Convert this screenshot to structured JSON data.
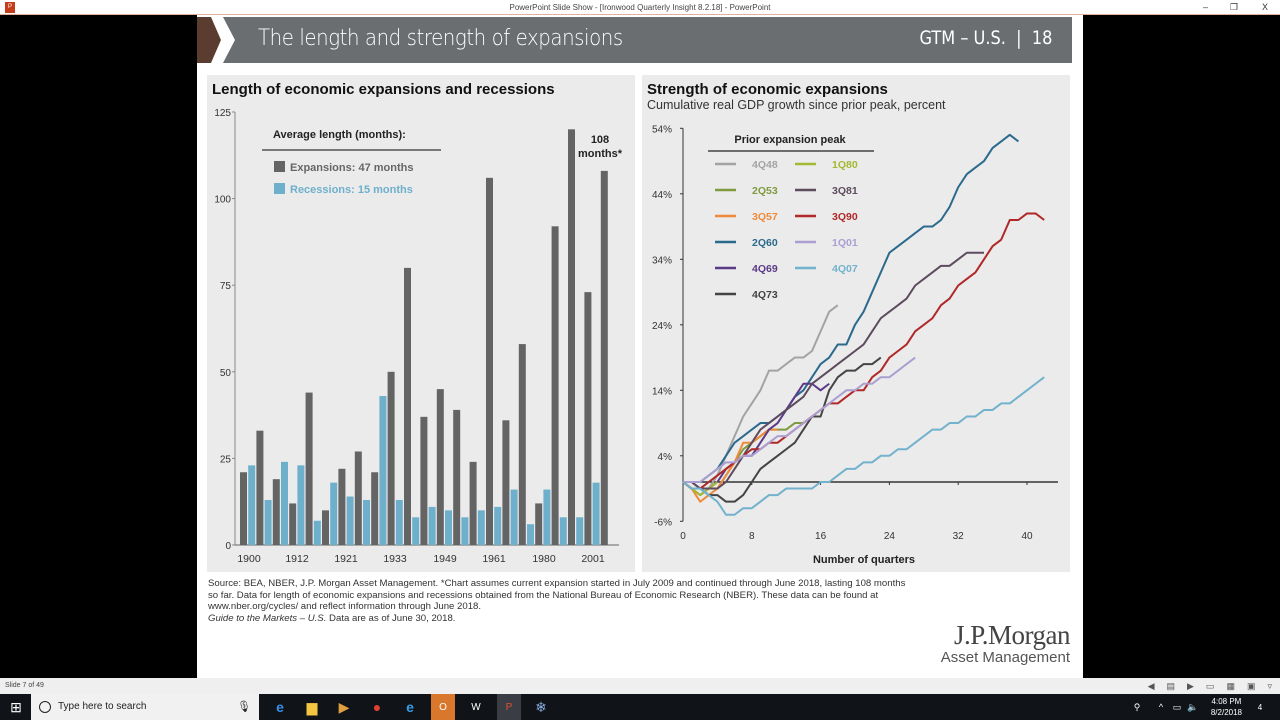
{
  "window": {
    "title": "PowerPoint Slide Show - [Ironwood Quarterly Insight 8.2.18] - PowerPoint",
    "minimize": "–",
    "restore": "❐",
    "close": "X"
  },
  "slide": {
    "title": "The length and strength of expansions",
    "section": "GTM – U.S.",
    "separator": "|",
    "page": "18",
    "accent": "#5a3d30",
    "header_color": "#6b6e71"
  },
  "left_chart": {
    "panel_title": "Length of economic expansions and recessions",
    "chart_data": {
      "type": "bar",
      "legend_title": "Average length (months):",
      "series": [
        {
          "name": "Expansions: 47 months",
          "color": "#646464",
          "values": [
            21,
            33,
            19,
            12,
            44,
            10,
            22,
            27,
            21,
            50,
            80,
            37,
            45,
            39,
            24,
            106,
            36,
            58,
            12,
            92,
            120,
            73,
            108
          ]
        },
        {
          "name": "Recessions: 15 months",
          "color": "#6eb0cc",
          "values": [
            23,
            13,
            24,
            23,
            7,
            18,
            14,
            13,
            43,
            13,
            8,
            11,
            10,
            8,
            10,
            11,
            16,
            6,
            16,
            8,
            8,
            18
          ]
        }
      ],
      "x_tick_labels": [
        "1900",
        "1912",
        "1921",
        "1933",
        "1949",
        "1961",
        "1980",
        "2001"
      ],
      "y_ticks": [
        0,
        25,
        50,
        75,
        100,
        125
      ],
      "ylim": [
        0,
        125
      ],
      "annotation": "108 months*"
    }
  },
  "right_chart": {
    "panel_title": "Strength of economic expansions",
    "subtitle": "Cumulative real GDP growth since prior peak, percent",
    "chart_data": {
      "type": "line",
      "legend_title": "Prior expansion peak",
      "xlabel": "Number of quarters",
      "xlim": [
        0,
        44
      ],
      "ylim": [
        -6,
        54
      ],
      "x_ticks": [
        0,
        8,
        16,
        24,
        32,
        40
      ],
      "y_ticks": [
        -6,
        4,
        14,
        24,
        34,
        44,
        54
      ],
      "y_tick_labels": [
        "-6%",
        "4%",
        "14%",
        "24%",
        "34%",
        "44%",
        "54%"
      ],
      "series": [
        {
          "name": "4Q48",
          "color": "#a3a3a3",
          "values": [
            0,
            -1,
            -2,
            -1,
            1,
            4,
            7,
            10,
            12,
            14,
            17,
            17,
            18,
            19,
            19,
            20,
            23,
            26,
            27
          ]
        },
        {
          "name": "2Q53",
          "color": "#7f9a3f",
          "values": [
            0,
            -1,
            -2,
            -1,
            -1,
            1,
            3,
            5,
            6,
            7,
            8,
            8,
            8,
            9,
            9,
            10,
            10
          ]
        },
        {
          "name": "3Q57",
          "color": "#f08a3a",
          "values": [
            0,
            -1,
            -3,
            -2,
            -1,
            1,
            3,
            6,
            6,
            7,
            8,
            8
          ]
        },
        {
          "name": "2Q60",
          "color": "#2b6a8c",
          "values": [
            0,
            0,
            0,
            1,
            2,
            4,
            6,
            7,
            8,
            9,
            9,
            10,
            11,
            13,
            14,
            16,
            18,
            19,
            21,
            21,
            24,
            26,
            29,
            32,
            35,
            36,
            37,
            38,
            39,
            39,
            40,
            42,
            45,
            47,
            48,
            49,
            51,
            52,
            53,
            52
          ]
        },
        {
          "name": "4Q69",
          "color": "#5b3a86",
          "values": [
            0,
            -1,
            -1,
            -1,
            0,
            2,
            3,
            4,
            4,
            6,
            8,
            9,
            11,
            13,
            15,
            15,
            14,
            15
          ]
        },
        {
          "name": "4Q73",
          "color": "#444444",
          "values": [
            0,
            0,
            -1,
            -2,
            -2,
            -3,
            -3,
            -2,
            0,
            2,
            3,
            4,
            5,
            6,
            8,
            10,
            10,
            14,
            16,
            17,
            17,
            18,
            18,
            19
          ]
        },
        {
          "name": "1Q80",
          "color": "#a4b832",
          "values": [
            0,
            -1,
            -2,
            -1,
            0
          ]
        },
        {
          "name": "3Q81",
          "color": "#5d4b5e",
          "values": [
            0,
            0,
            -1,
            -1,
            -1,
            0,
            2,
            4,
            6,
            8,
            9,
            10,
            11,
            12,
            13,
            15,
            16,
            17,
            18,
            19,
            20,
            21,
            23,
            25,
            26,
            27,
            28,
            30,
            31,
            32,
            33,
            33,
            34,
            35,
            35,
            35
          ]
        },
        {
          "name": "3Q90",
          "color": "#b02828",
          "values": [
            0,
            -1,
            -1,
            0,
            1,
            2,
            3,
            4,
            5,
            5,
            6,
            6,
            7,
            8,
            9,
            10,
            11,
            12,
            12,
            13,
            14,
            14,
            16,
            17,
            19,
            20,
            21,
            23,
            24,
            25,
            27,
            28,
            30,
            31,
            32,
            34,
            36,
            37,
            40,
            40,
            41,
            41,
            40
          ]
        },
        {
          "name": "1Q01",
          "color": "#ab9fd2",
          "values": [
            0,
            0,
            0,
            1,
            2,
            3,
            3,
            4,
            4,
            5,
            6,
            7,
            7,
            8,
            9,
            10,
            11,
            12,
            13,
            14,
            14,
            15,
            15,
            16,
            16,
            17,
            18,
            19
          ]
        },
        {
          "name": "4Q07",
          "color": "#72b2cd",
          "values": [
            0,
            -1,
            -1,
            -2,
            -3,
            -5,
            -5,
            -4,
            -4,
            -3,
            -2,
            -2,
            -1,
            -1,
            -1,
            -1,
            0,
            0,
            1,
            2,
            2,
            3,
            3,
            4,
            4,
            5,
            5,
            6,
            7,
            8,
            8,
            9,
            9,
            10,
            10,
            11,
            11,
            12,
            12,
            13,
            14,
            15,
            16
          ]
        }
      ]
    }
  },
  "footer": {
    "source": "Source: BEA, NBER, J.P. Morgan Asset Management. *Chart assumes current expansion started in July 2009 and continued through June 2018, lasting 108 months so far. Data for length of economic expansions and recessions obtained from the National Bureau of Economic Research (NBER). These data can be found at www.nber.org/cycles/ and reflect information through June 2018.",
    "guide": "Guide to the Markets – U.S.",
    "asof": " Data are as of June 30, 2018."
  },
  "logo": {
    "line1": "J.P.Morgan",
    "line2": "Asset Management"
  },
  "statusbar": {
    "slide_count": "Slide 7 of 49"
  },
  "taskbar": {
    "search_placeholder": "Type here to search",
    "time": "4:08 PM",
    "date": "8/2/2018",
    "notifications": "4"
  }
}
